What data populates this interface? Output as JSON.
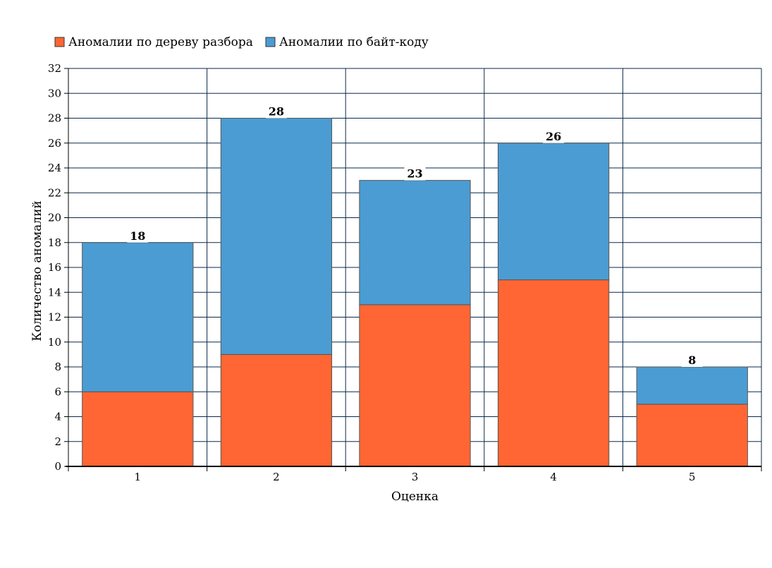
{
  "chart_data": {
    "type": "bar",
    "stacked": true,
    "title": "",
    "xlabel": "Оценка",
    "ylabel": "Количество аномалий",
    "categories": [
      "1",
      "2",
      "3",
      "4",
      "5"
    ],
    "series": [
      {
        "name": "Аномалии по дереву разбора",
        "color": "#ff6633",
        "values": [
          6,
          9,
          13,
          15,
          5
        ]
      },
      {
        "name": "Аномалии по байт-коду",
        "color": "#4b9cd3",
        "values": [
          12,
          19,
          10,
          11,
          3
        ]
      }
    ],
    "totals": [
      18,
      28,
      23,
      26,
      8
    ],
    "ylim": [
      0,
      32
    ],
    "ytick_step": 2,
    "grid": true,
    "legend_position": "top-left"
  }
}
